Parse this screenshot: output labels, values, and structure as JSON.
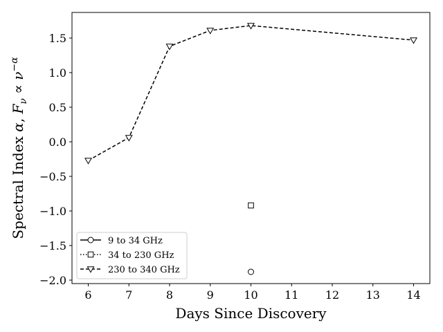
{
  "chart_data": {
    "type": "line",
    "xlabel": "Days Since Discovery",
    "ylabel_parts": {
      "prefix": "Spectral Index ",
      "alpha": "α",
      "comma": ", ",
      "F": "F",
      "nu_sub": "ν",
      "prop": " ∝ ",
      "nu": "ν",
      "exp": "−α"
    },
    "xlim": [
      5.6,
      14.4
    ],
    "ylim": [
      -2.05,
      1.87
    ],
    "x_ticks": [
      6,
      7,
      8,
      9,
      10,
      11,
      12,
      13,
      14
    ],
    "x_tick_labels": [
      "6",
      "7",
      "8",
      "9",
      "10",
      "11",
      "12",
      "13",
      "14"
    ],
    "y_ticks": [
      -2.0,
      -1.5,
      -1.0,
      -0.5,
      0.0,
      0.5,
      1.0,
      1.5
    ],
    "y_tick_labels": [
      "−2.0",
      "−1.5",
      "−1.0",
      "−0.5",
      "0.0",
      "0.5",
      "1.0",
      "1.5"
    ],
    "legend_position": "lower-left",
    "series": [
      {
        "name": "9 to 34 GHz",
        "marker": "circle",
        "linestyle": "solid",
        "x": [
          10
        ],
        "y": [
          -1.88
        ]
      },
      {
        "name": "34 to 230 GHz",
        "marker": "square",
        "linestyle": "dotted",
        "x": [
          10
        ],
        "y": [
          -0.92
        ]
      },
      {
        "name": "230 to 340 GHz",
        "marker": "triangle-down",
        "linestyle": "dashed",
        "x": [
          6,
          7,
          8,
          9,
          10,
          14
        ],
        "y": [
          -0.27,
          0.06,
          1.38,
          1.61,
          1.68,
          1.47
        ]
      }
    ]
  }
}
